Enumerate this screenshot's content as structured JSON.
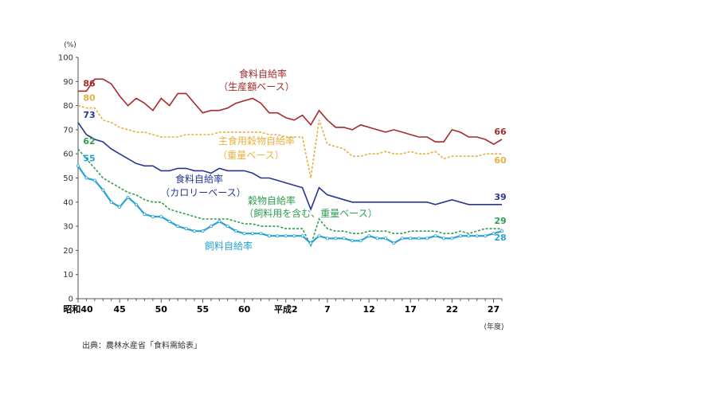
{
  "chart_data": {
    "type": "line",
    "y_unit": "(%)",
    "x_unit": "(年度)",
    "ylim": [
      0,
      100
    ],
    "y_ticks": [
      0,
      10,
      20,
      30,
      40,
      50,
      60,
      70,
      80,
      90,
      100
    ],
    "x_tick_labels": [
      {
        "label": "昭和40",
        "index": 0
      },
      {
        "label": "45",
        "index": 5
      },
      {
        "label": "50",
        "index": 10
      },
      {
        "label": "55",
        "index": 15
      },
      {
        "label": "60",
        "index": 20
      },
      {
        "label": "平成2",
        "index": 25
      },
      {
        "label": "7",
        "index": 30
      },
      {
        "label": "12",
        "index": 35
      },
      {
        "label": "17",
        "index": 40
      },
      {
        "label": "22",
        "index": 45
      },
      {
        "label": "27",
        "index": 50
      }
    ],
    "series": [
      {
        "name": "食料自給率\n（生産額ベース）",
        "color": "#a52a2a",
        "style": "solid",
        "label_lines": [
          "食料自給率",
          "（生産額ベース）"
        ],
        "start_label": "86",
        "end_label": "66",
        "values": [
          86,
          86,
          91,
          91,
          89,
          84,
          80,
          83,
          81,
          78,
          83,
          80,
          85,
          85,
          81,
          77,
          78,
          78,
          79,
          81,
          82,
          83,
          81,
          77,
          77,
          75,
          74,
          76,
          72,
          78,
          74,
          71,
          71,
          70,
          72,
          71,
          70,
          69,
          70,
          69,
          68,
          67,
          67,
          65,
          65,
          70,
          69,
          67,
          67,
          66,
          64,
          66
        ]
      },
      {
        "name": "主食用穀物自給率\n（重量ベース）",
        "color": "#e8b040",
        "style": "dashed",
        "label_lines": [
          "主食用穀物自給率",
          "（重量ベース）"
        ],
        "start_label": "80",
        "end_label": "60",
        "values": [
          80,
          79,
          79,
          74,
          73,
          71,
          70,
          69,
          69,
          68,
          67,
          67,
          67,
          68,
          68,
          68,
          68,
          69,
          69,
          69,
          69,
          69,
          69,
          68,
          68,
          67,
          67,
          67,
          50,
          74,
          64,
          63,
          62,
          59,
          59,
          60,
          60,
          61,
          60,
          60,
          61,
          60,
          60,
          61,
          58,
          59,
          59,
          59,
          59,
          60,
          60,
          60
        ]
      },
      {
        "name": "食料自給率\n（カロリーベース）",
        "color": "#283593",
        "style": "solid",
        "label_lines": [
          "食料自給率",
          "（カロリーベース）"
        ],
        "start_label": "73",
        "end_label": "39",
        "values": [
          73,
          68,
          66,
          65,
          62,
          60,
          58,
          56,
          55,
          55,
          53,
          53,
          54,
          54,
          53,
          53,
          52,
          54,
          53,
          53,
          53,
          52,
          50,
          50,
          49,
          48,
          47,
          46,
          37,
          46,
          43,
          42,
          41,
          40,
          40,
          40,
          40,
          40,
          40,
          40,
          40,
          40,
          40,
          39,
          40,
          41,
          40,
          39,
          39,
          39,
          39,
          39
        ]
      },
      {
        "name": "穀物自給率\n（飼料用を含む、重量ベース）",
        "color": "#2e9e4f",
        "style": "dashed",
        "label_lines": [
          "穀物自給率",
          "（飼料用を含む、重量ベース）"
        ],
        "start_label": "62",
        "end_label": "29",
        "values": [
          62,
          58,
          54,
          50,
          48,
          46,
          44,
          43,
          41,
          40,
          40,
          37,
          36,
          35,
          34,
          33,
          33,
          33,
          33,
          32,
          31,
          31,
          30,
          30,
          30,
          29,
          29,
          29,
          22,
          33,
          29,
          28,
          28,
          27,
          27,
          28,
          28,
          28,
          27,
          27,
          28,
          28,
          28,
          28,
          27,
          27,
          28,
          27,
          28,
          29,
          29,
          29
        ]
      },
      {
        "name": "飼料自給率",
        "color": "#29a3d6",
        "style": "marker",
        "label_lines": [
          "飼料自給率"
        ],
        "start_label": "55",
        "end_label": "28",
        "values": [
          55,
          50,
          49,
          45,
          40,
          38,
          42,
          39,
          35,
          34,
          34,
          32,
          30,
          29,
          28,
          28,
          30,
          32,
          30,
          28,
          27,
          27,
          27,
          26,
          26,
          26,
          26,
          26,
          23,
          26,
          25,
          25,
          25,
          24,
          24,
          26,
          25,
          25,
          23,
          25,
          25,
          25,
          25,
          26,
          25,
          25,
          26,
          26,
          26,
          26,
          27,
          28
        ]
      }
    ]
  },
  "source": "出典：農林水産省「食料需給表」"
}
